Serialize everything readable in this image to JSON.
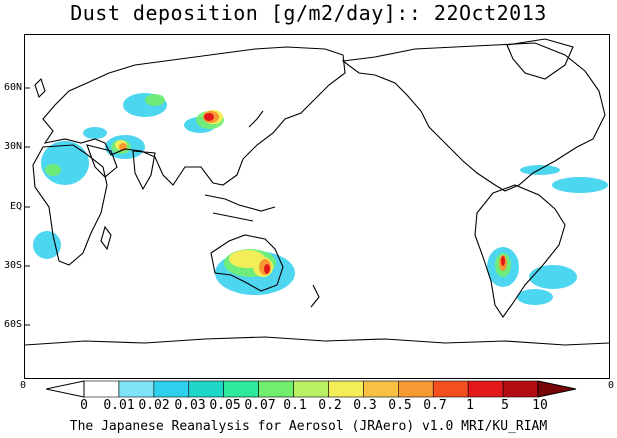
{
  "title": "Dust deposition [g/m2/day]:: 22Oct2013",
  "footer": "The Japanese Reanalysis for Aerosol (JRAero) v1.0 MRI/KU_RIAM",
  "lat_labels": [
    "60N",
    "30N",
    "EQ",
    "30S",
    "60S"
  ],
  "edge_labels": {
    "left": "0",
    "right": "0"
  },
  "colorbar": {
    "labels": [
      "0",
      "0.01",
      "0.02",
      "0.03",
      "0.05",
      "0.07",
      "0.1",
      "0.2",
      "0.3",
      "0.5",
      "0.7",
      "1",
      "5",
      "10"
    ],
    "colors": [
      "#ffffff",
      "#ffffff",
      "#7fe4f8",
      "#2fcfee",
      "#1fd7c9",
      "#2ee89b",
      "#72ee6f",
      "#b9f064",
      "#f4ed5a",
      "#f8c144",
      "#f79a33",
      "#f3501f",
      "#e3181a",
      "#b30b10",
      "#7a0508"
    ]
  },
  "icons": {
    "map": "world-coastline-map",
    "colorbar": "colorbar-arrows"
  }
}
